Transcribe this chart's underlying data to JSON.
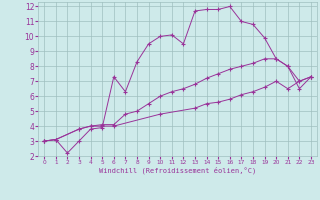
{
  "xlabel": "Windchill (Refroidissement éolien,°C)",
  "xlim": [
    -0.5,
    23.5
  ],
  "ylim": [
    2,
    12.3
  ],
  "xticks": [
    0,
    1,
    2,
    3,
    4,
    5,
    6,
    7,
    8,
    9,
    10,
    11,
    12,
    13,
    14,
    15,
    16,
    17,
    18,
    19,
    20,
    21,
    22,
    23
  ],
  "yticks": [
    2,
    3,
    4,
    5,
    6,
    7,
    8,
    9,
    10,
    11,
    12
  ],
  "background_color": "#ceeaea",
  "grid_color": "#9fbfbf",
  "line_color": "#993399",
  "series": [
    {
      "x": [
        0,
        1,
        2,
        3,
        4,
        5,
        6,
        7,
        8,
        9,
        10,
        11,
        12,
        13,
        14,
        15,
        16,
        17,
        18,
        19,
        20,
        21,
        22,
        23
      ],
      "y": [
        3.0,
        3.1,
        2.2,
        3.0,
        3.8,
        3.9,
        7.3,
        6.3,
        8.3,
        9.5,
        10.0,
        10.1,
        9.5,
        11.7,
        11.8,
        11.8,
        12.0,
        11.0,
        10.8,
        9.9,
        8.5,
        8.0,
        6.5,
        7.3
      ]
    },
    {
      "x": [
        0,
        1,
        3,
        4,
        5,
        6,
        7,
        8,
        9,
        10,
        11,
        12,
        13,
        14,
        15,
        16,
        17,
        18,
        19,
        20,
        21,
        22,
        23
      ],
      "y": [
        3.0,
        3.1,
        3.8,
        4.0,
        4.1,
        4.1,
        4.8,
        5.0,
        5.5,
        6.0,
        6.3,
        6.5,
        6.8,
        7.2,
        7.5,
        7.8,
        8.0,
        8.2,
        8.5,
        8.5,
        8.0,
        7.0,
        7.3
      ]
    },
    {
      "x": [
        0,
        1,
        3,
        4,
        5,
        6,
        10,
        13,
        14,
        15,
        16,
        17,
        18,
        19,
        20,
        21,
        22,
        23
      ],
      "y": [
        3.0,
        3.1,
        3.8,
        4.0,
        4.0,
        4.0,
        4.8,
        5.2,
        5.5,
        5.6,
        5.8,
        6.1,
        6.3,
        6.6,
        7.0,
        6.5,
        7.0,
        7.3
      ]
    }
  ]
}
